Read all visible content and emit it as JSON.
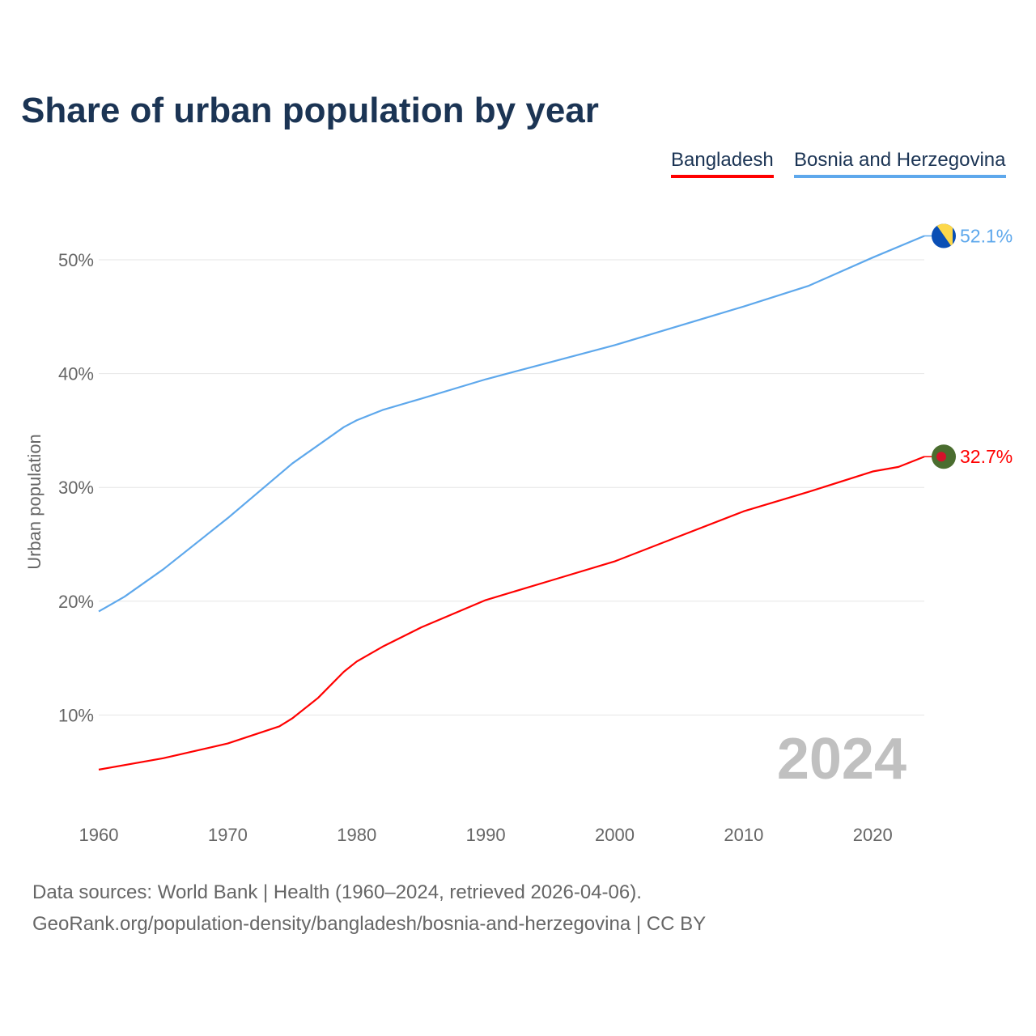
{
  "chart_data": {
    "type": "line",
    "title": "Share of urban population by year",
    "xlabel": "",
    "ylabel": "Urban population",
    "xlim": [
      1960,
      2024
    ],
    "ylim": [
      0,
      55
    ],
    "yticks": [
      10,
      20,
      30,
      40,
      50
    ],
    "ytick_labels": [
      "10%",
      "20%",
      "30%",
      "40%",
      "50%"
    ],
    "xticks": [
      1960,
      1970,
      1980,
      1990,
      2000,
      2010,
      2020
    ],
    "xtick_labels": [
      "1960",
      "1970",
      "1980",
      "1990",
      "2000",
      "2010",
      "2020"
    ],
    "grid": true,
    "legend_position": "top-right",
    "year_watermark": "2024",
    "series": [
      {
        "name": "Bangladesh",
        "color": "#ff0000",
        "end_label": "32.7%",
        "x": [
          1960,
          1965,
          1970,
          1974,
          1975,
          1977,
          1979,
          1980,
          1982,
          1985,
          1990,
          1995,
          2000,
          2005,
          2010,
          2015,
          2020,
          2022,
          2024
        ],
        "values": [
          5.2,
          6.2,
          7.5,
          9.0,
          9.7,
          11.5,
          13.8,
          14.7,
          16.0,
          17.7,
          20.1,
          21.8,
          23.5,
          25.7,
          27.9,
          29.6,
          31.4,
          31.8,
          32.7
        ]
      },
      {
        "name": "Bosnia and Herzegovina",
        "color": "#5ea8ec",
        "end_label": "52.1%",
        "x": [
          1960,
          1962,
          1965,
          1970,
          1975,
          1979,
          1980,
          1982,
          1985,
          1990,
          1992,
          1995,
          2000,
          2005,
          2010,
          2015,
          2020,
          2024
        ],
        "values": [
          19.1,
          20.4,
          22.8,
          27.3,
          32.1,
          35.3,
          35.9,
          36.8,
          37.8,
          39.5,
          40.1,
          41.0,
          42.5,
          44.2,
          45.9,
          47.7,
          50.2,
          52.1
        ]
      }
    ]
  },
  "footer": {
    "line1": "Data sources: World Bank | Health (1960–2024, retrieved 2026-04-06).",
    "line2": "GeoRank.org/population-density/bangladesh/bosnia-and-herzegovina | CC BY"
  }
}
